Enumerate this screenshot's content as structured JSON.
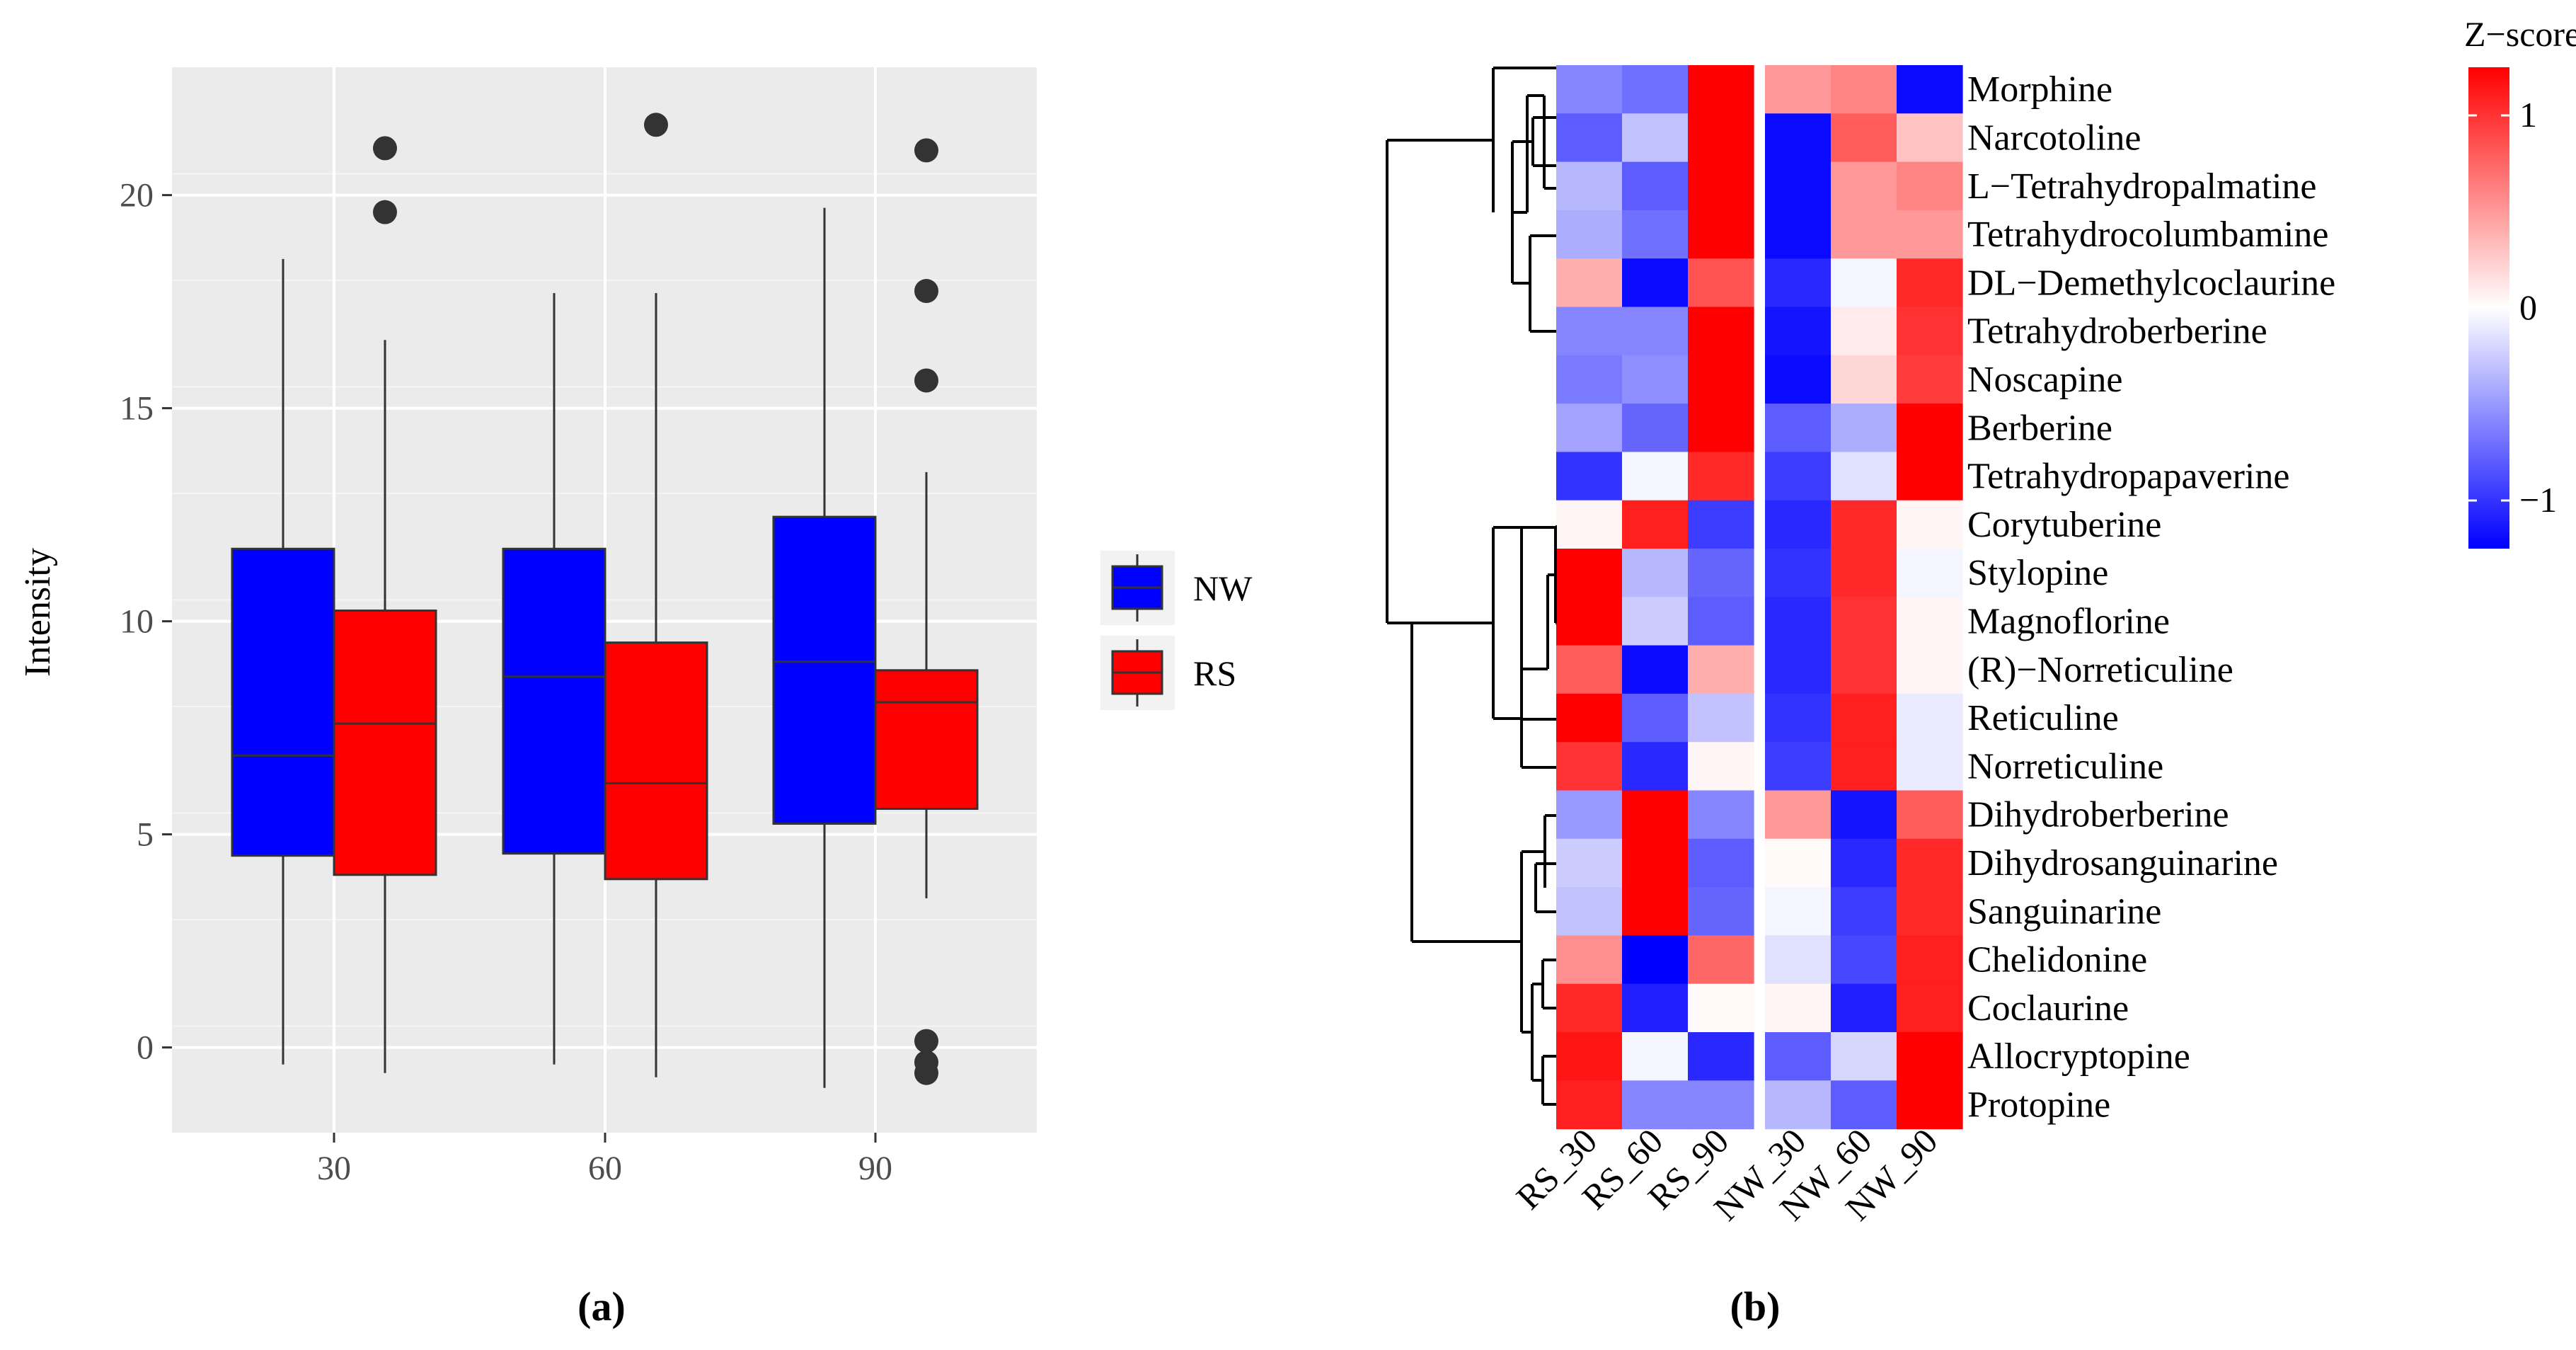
{
  "chart_data": [
    {
      "type": "box",
      "panel_label": "(a)",
      "ylabel": "Intensity",
      "categories": [
        "30",
        "60",
        "90"
      ],
      "ylim": [
        -2,
        23
      ],
      "yticks": [
        "0",
        "5",
        "10",
        "15",
        "20"
      ],
      "legend": {
        "position": "right",
        "items": [
          {
            "name": "NW",
            "color": "#0000ff"
          },
          {
            "name": "RS",
            "color": "#ff0000"
          }
        ]
      },
      "series": [
        {
          "name": "NW",
          "color": "#0000ff",
          "boxes": [
            {
              "category": "30",
              "whisker_low": -0.4,
              "q1": 4.5,
              "median": 6.85,
              "q3": 11.7,
              "whisker_high": 18.5,
              "outliers": []
            },
            {
              "category": "60",
              "whisker_low": -0.4,
              "q1": 4.55,
              "median": 8.7,
              "q3": 11.7,
              "whisker_high": 17.7,
              "outliers": []
            },
            {
              "category": "90",
              "whisker_low": -0.95,
              "q1": 5.25,
              "median": 9.05,
              "q3": 12.45,
              "whisker_high": 19.7,
              "outliers": []
            }
          ]
        },
        {
          "name": "RS",
          "color": "#ff0000",
          "boxes": [
            {
              "category": "30",
              "whisker_low": -0.6,
              "q1": 4.05,
              "median": 7.6,
              "q3": 10.25,
              "whisker_high": 16.6,
              "outliers": [
                19.6,
                21.1
              ]
            },
            {
              "category": "60",
              "whisker_low": -0.7,
              "q1": 3.95,
              "median": 6.2,
              "q3": 9.5,
              "whisker_high": 17.7,
              "outliers": [
                21.65
              ]
            },
            {
              "category": "90",
              "whisker_low": 3.5,
              "q1": 5.6,
              "median": 8.1,
              "q3": 8.85,
              "whisker_high": 13.5,
              "outliers": [
                21.05,
                17.75,
                15.65,
                0.15,
                -0.35,
                -0.6
              ]
            }
          ]
        }
      ]
    },
    {
      "type": "heatmap",
      "panel_label": "(b)",
      "legend_title": "Z−score",
      "scale_ticks": [
        {
          "value": 1,
          "label": "1"
        },
        {
          "value": 0,
          "label": "0"
        },
        {
          "value": -1,
          "label": "−1"
        }
      ],
      "value_range": [
        -1.25,
        1.25
      ],
      "colors": {
        "low": "#0000ff",
        "mid": "#ffffff",
        "high": "#ff0000"
      },
      "columns": [
        "RS_30",
        "RS_60",
        "RS_90",
        "NW_30",
        "NW_60",
        "NW_90"
      ],
      "rows": [
        "Morphine",
        "Narcotoline",
        "L−Tetrahydropalmatine",
        "Tetrahydrocolumbamine",
        "DL−Demethylcoclaurine",
        "Tetrahydroberberine",
        "Noscapine",
        "Berberine",
        "Tetrahydropapaverine",
        "Corytuberine",
        "Stylopine",
        "Magnoflorine",
        "(R)−Norreticuline",
        "Reticuline",
        "Norreticuline",
        "Dihydroberberine",
        "Dihydrosanguinarine",
        "Sanguinarine",
        "Chelidonine",
        "Coclaurine",
        "Allocryptopine",
        "Protopine"
      ],
      "values": [
        [
          -0.6,
          -0.7,
          1.25,
          0.5,
          0.6,
          -1.2
        ],
        [
          -0.8,
          -0.3,
          1.25,
          -1.2,
          0.8,
          0.3
        ],
        [
          -0.35,
          -0.8,
          1.25,
          -1.2,
          0.5,
          0.6
        ],
        [
          -0.4,
          -0.7,
          1.25,
          -1.2,
          0.5,
          0.5
        ],
        [
          0.4,
          -1.2,
          0.85,
          -1.05,
          -0.05,
          1.05
        ],
        [
          -0.6,
          -0.6,
          1.25,
          -1.15,
          0.1,
          1.0
        ],
        [
          -0.65,
          -0.55,
          1.25,
          -1.2,
          0.2,
          0.95
        ],
        [
          -0.45,
          -0.75,
          1.25,
          -0.8,
          -0.4,
          1.25
        ],
        [
          -1.0,
          -0.05,
          1.05,
          -0.95,
          -0.15,
          1.25
        ],
        [
          0.05,
          1.1,
          -0.95,
          -1.05,
          1.05,
          0.05
        ],
        [
          1.25,
          -0.35,
          -0.75,
          -1.0,
          1.05,
          -0.05
        ],
        [
          1.25,
          -0.25,
          -0.8,
          -1.05,
          1.0,
          0.05
        ],
        [
          0.8,
          -1.2,
          0.4,
          -1.05,
          1.0,
          0.05
        ],
        [
          1.25,
          -0.8,
          -0.3,
          -1.0,
          1.1,
          -0.1
        ],
        [
          1.0,
          -1.05,
          0.05,
          -0.95,
          1.1,
          -0.1
        ],
        [
          -0.5,
          1.25,
          -0.6,
          0.5,
          -1.15,
          0.8
        ],
        [
          -0.25,
          1.25,
          -0.8,
          0.03,
          -1.05,
          1.05
        ],
        [
          -0.3,
          1.25,
          -0.75,
          -0.05,
          -0.95,
          1.05
        ],
        [
          0.55,
          -1.25,
          0.75,
          -0.15,
          -0.9,
          1.1
        ],
        [
          1.05,
          -1.1,
          0.03,
          0.05,
          -1.1,
          1.1
        ],
        [
          1.15,
          -0.05,
          -1.05,
          -0.8,
          -0.2,
          1.25
        ],
        [
          1.1,
          -0.6,
          -0.6,
          -0.35,
          -0.8,
          1.25
        ]
      ]
    }
  ]
}
